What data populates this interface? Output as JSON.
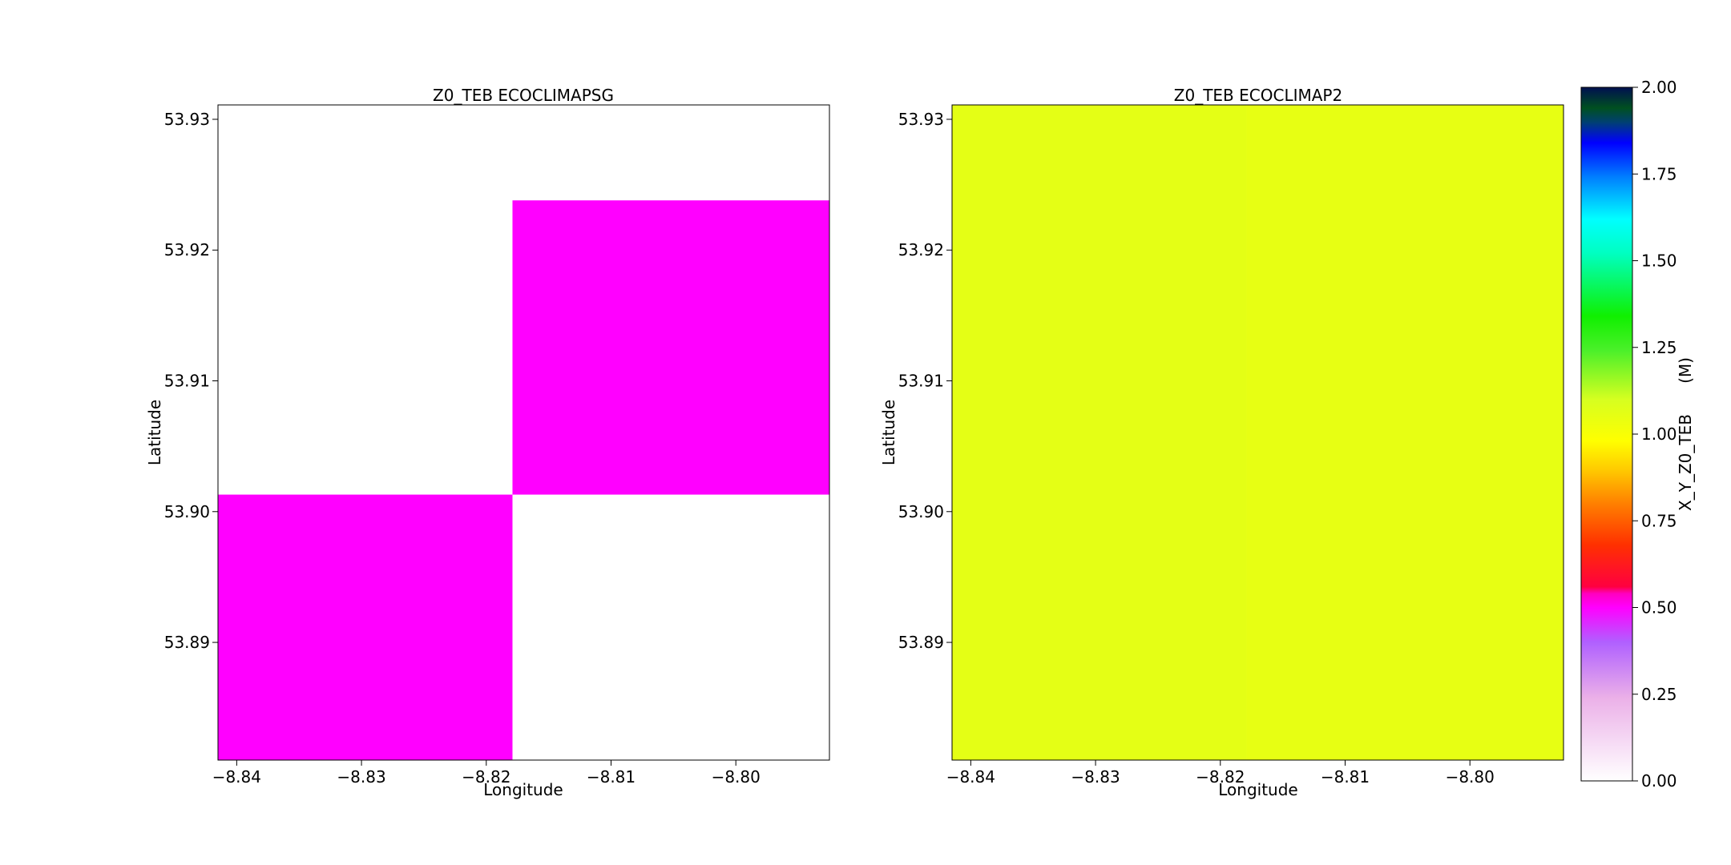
{
  "chart_data": [
    {
      "type": "heatmap",
      "title": "Z0_TEB ECOCLIMAPSG",
      "xlabel": "Longitude",
      "ylabel": "Latitude",
      "xlim": [
        -8.8415,
        -8.7925
      ],
      "ylim": [
        53.881,
        53.9311
      ],
      "xticks": [
        -8.84,
        -8.83,
        -8.82,
        -8.81,
        -8.8
      ],
      "xtick_labels": [
        "−8.84",
        "−8.83",
        "−8.82",
        "−8.81",
        "−8.80"
      ],
      "yticks": [
        53.89,
        53.9,
        53.91,
        53.92,
        53.93
      ],
      "ytick_labels": [
        "53.89",
        "53.90",
        "53.91",
        "53.92",
        "53.93"
      ],
      "cells": [
        {
          "x0": -8.8415,
          "x1": -8.8179,
          "y0": 53.881,
          "y1": 53.9013,
          "value": 0.5
        },
        {
          "x0": -8.8179,
          "x1": -8.7925,
          "y0": 53.9013,
          "y1": 53.9238,
          "value": 0.5
        }
      ]
    },
    {
      "type": "heatmap",
      "title": "Z0_TEB ECOCLIMAP2",
      "xlabel": "Longitude",
      "ylabel": "Latitude",
      "xlim": [
        -8.8415,
        -8.7925
      ],
      "ylim": [
        53.881,
        53.9311
      ],
      "xticks": [
        -8.84,
        -8.83,
        -8.82,
        -8.81,
        -8.8
      ],
      "xtick_labels": [
        "−8.84",
        "−8.83",
        "−8.82",
        "−8.81",
        "−8.80"
      ],
      "yticks": [
        53.89,
        53.9,
        53.91,
        53.92,
        53.93
      ],
      "ytick_labels": [
        "53.89",
        "53.90",
        "53.91",
        "53.92",
        "53.93"
      ],
      "cells": [
        {
          "x0": -8.8415,
          "x1": -8.8179,
          "y0": 53.881,
          "y1": 53.9311,
          "value": 1.06
        },
        {
          "x0": -8.8179,
          "x1": -8.7925,
          "y0": 53.881,
          "y1": 53.9311,
          "value": 1.05
        }
      ]
    }
  ],
  "colorbar": {
    "label": "X_Y_Z0_TEB      (M)",
    "range": [
      0.0,
      2.0
    ],
    "ticks": [
      0.0,
      0.25,
      0.5,
      0.75,
      1.0,
      1.25,
      1.5,
      1.75,
      2.0
    ],
    "tick_labels": [
      "0.00",
      "0.25",
      "0.50",
      "0.75",
      "1.00",
      "1.25",
      "1.50",
      "1.75",
      "2.00"
    ],
    "colormap_stops": [
      [
        0.0,
        "#ffffff"
      ],
      [
        0.12,
        "#ebb0e8"
      ],
      [
        0.2,
        "#b060ff"
      ],
      [
        0.25,
        "#ff00ff"
      ],
      [
        0.27,
        "#ff00c0"
      ],
      [
        0.28,
        "#ff0040"
      ],
      [
        0.34,
        "#ff3000"
      ],
      [
        0.4,
        "#ff8000"
      ],
      [
        0.45,
        "#ffcc00"
      ],
      [
        0.49,
        "#ffff00"
      ],
      [
        0.55,
        "#d6ff20"
      ],
      [
        0.62,
        "#4cf02a"
      ],
      [
        0.67,
        "#10f000"
      ],
      [
        0.76,
        "#00ffc0"
      ],
      [
        0.81,
        "#00ffff"
      ],
      [
        0.87,
        "#0080ff"
      ],
      [
        0.92,
        "#0000ff"
      ],
      [
        0.95,
        "#004070"
      ],
      [
        0.97,
        "#005020"
      ],
      [
        1.0,
        "#001050"
      ]
    ]
  }
}
